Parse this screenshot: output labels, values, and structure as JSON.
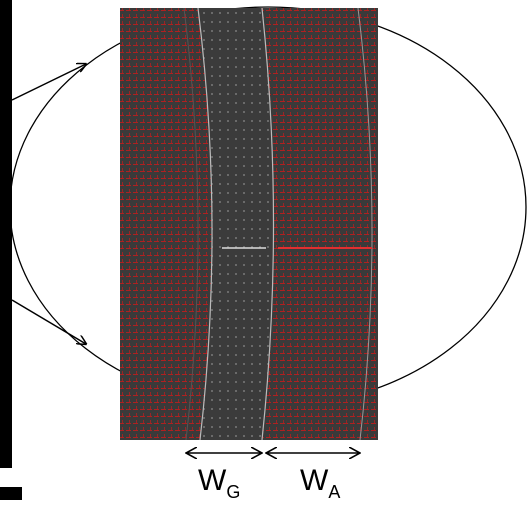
{
  "labels": [
    {
      "main": "W",
      "sub": "G"
    },
    {
      "main": "W",
      "sub": "A"
    }
  ]
}
